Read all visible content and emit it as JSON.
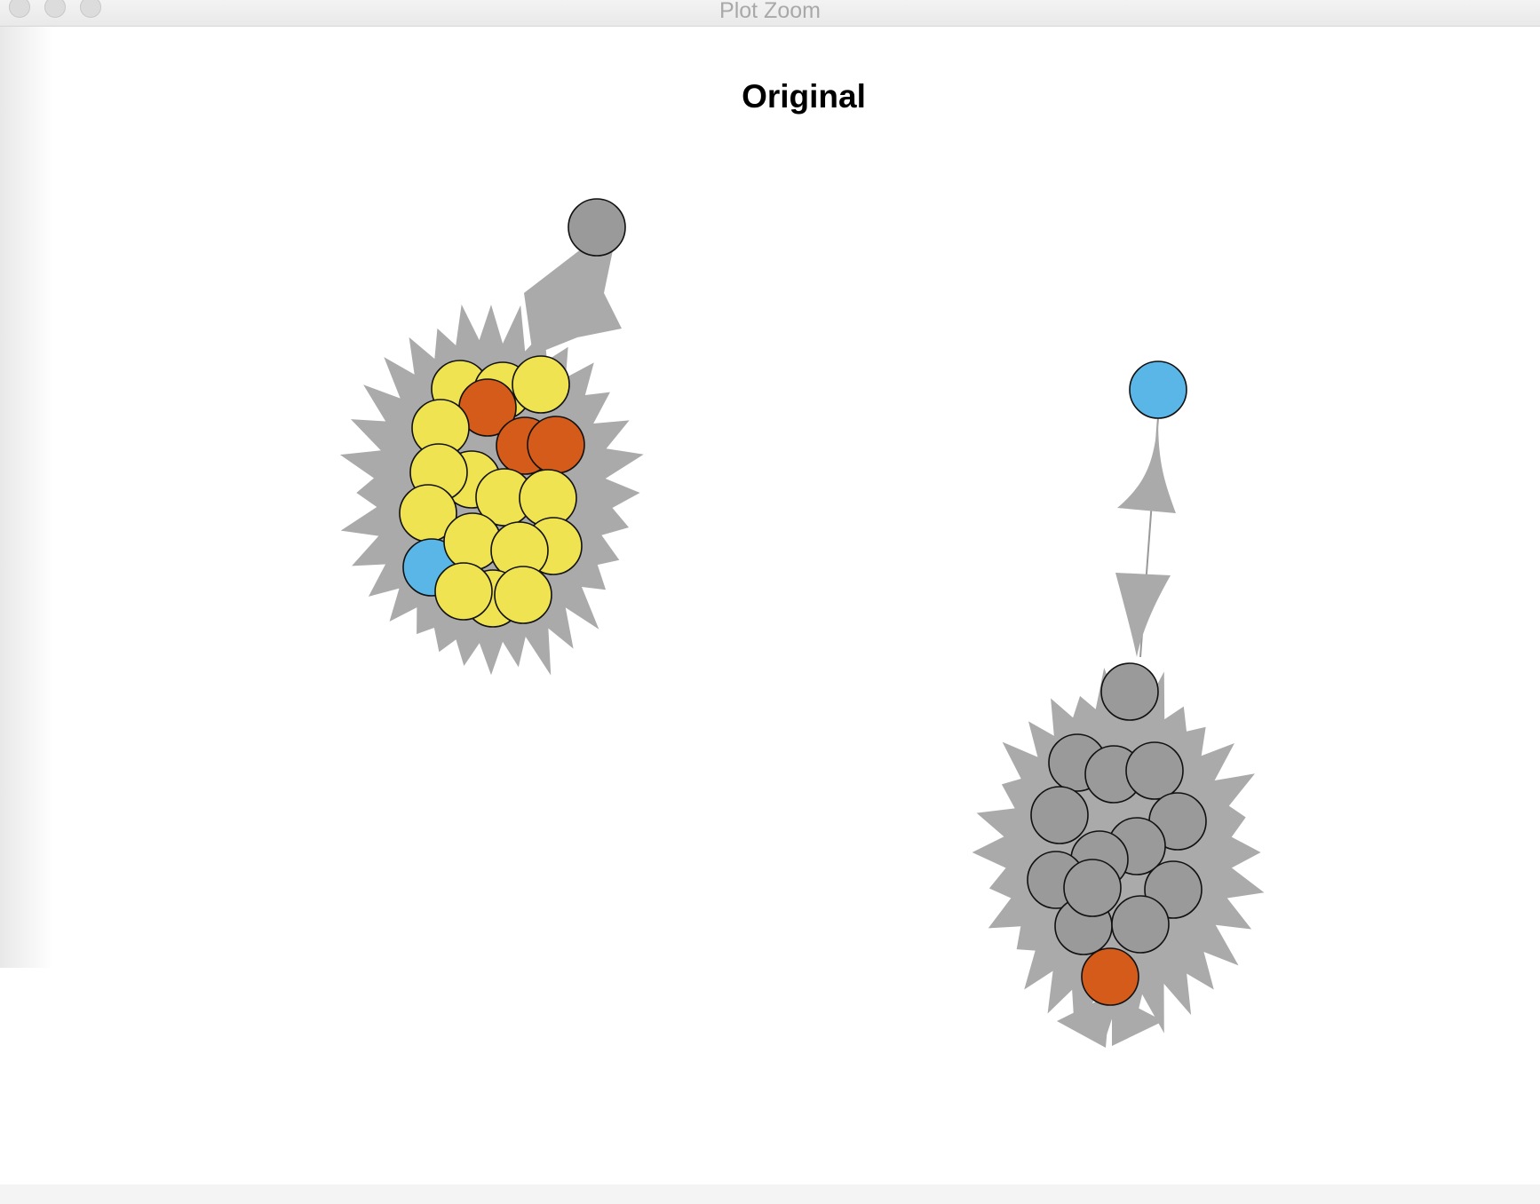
{
  "window": {
    "title": "Plot Zoom"
  },
  "plot": {
    "title": "Original"
  },
  "colors": {
    "yellow": "#efe352",
    "orange": "#d45b19",
    "blue": "#5bb6e8",
    "gray": "#9a9a9a",
    "edge": "#aaaaaa",
    "stroke": "#111111"
  },
  "node_groups": [
    {
      "name": "cluster-left-top-node",
      "colors": [
        "gray"
      ]
    },
    {
      "name": "cluster-left",
      "colors": [
        "yellow",
        "yellow",
        "yellow",
        "orange",
        "yellow",
        "orange",
        "orange",
        "yellow",
        "yellow",
        "yellow",
        "yellow",
        "yellow",
        "yellow",
        "blue",
        "yellow",
        "yellow",
        "yellow",
        "yellow",
        "yellow"
      ]
    },
    {
      "name": "cluster-right-top-node",
      "colors": [
        "blue"
      ]
    },
    {
      "name": "cluster-right",
      "colors": [
        "gray",
        "gray",
        "gray",
        "gray",
        "gray",
        "gray",
        "gray",
        "gray",
        "gray",
        "gray",
        "gray",
        "gray",
        "gray",
        "orange"
      ]
    }
  ]
}
